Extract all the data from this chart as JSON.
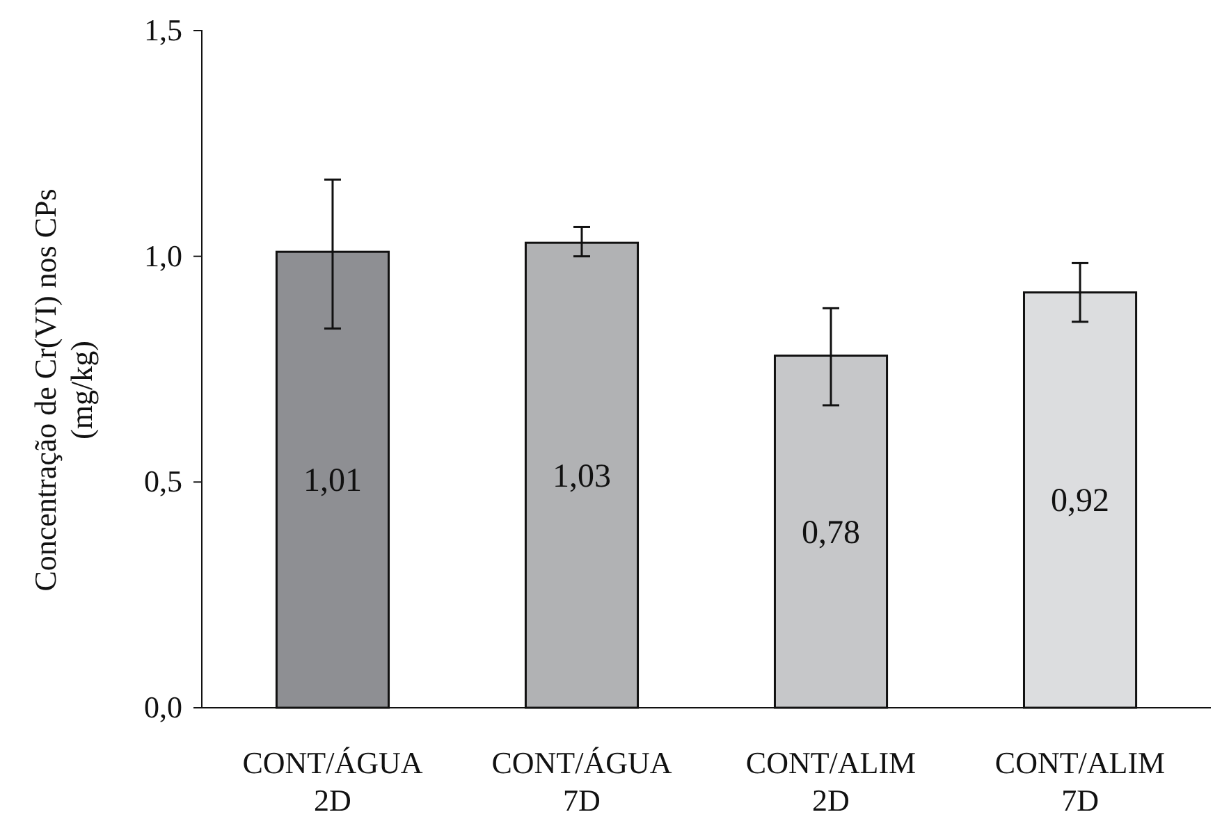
{
  "chart_data": {
    "type": "bar",
    "ylabel": "Concentração de Cr(VI) nos CPs (mg/kg)",
    "categories": [
      "CONT/ÁGUA 2D",
      "CONT/ÁGUA 7D",
      "CONT/ALIM 2D",
      "CONT/ALIM 7D"
    ],
    "values": [
      1.01,
      1.03,
      0.78,
      0.92
    ],
    "colors": [
      "#8e8f93",
      "#b1b2b4",
      "#c6c7c9",
      "#dcdddf"
    ],
    "errors": [
      [
        0.84,
        1.17
      ],
      [
        1.0,
        1.065
      ],
      [
        0.67,
        0.885
      ],
      [
        0.855,
        0.985
      ]
    ],
    "value_labels": [
      "1,01",
      "1,03",
      "0,78",
      "0,92"
    ],
    "ylim": [
      0,
      1.5
    ],
    "yticks": [
      {
        "value": 0,
        "label": "0,0"
      },
      {
        "value": 0.5,
        "label": "0,5"
      },
      {
        "value": 1,
        "label": "1,0"
      },
      {
        "value": 1.5,
        "label": "1,5"
      }
    ],
    "grid": false
  }
}
